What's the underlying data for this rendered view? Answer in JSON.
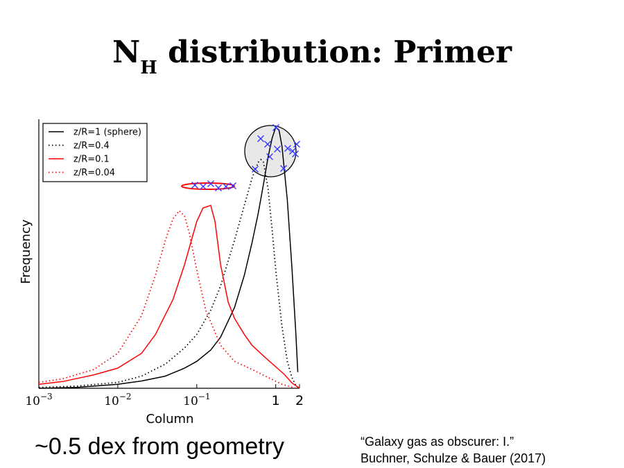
{
  "slide": {
    "title_main": "N",
    "title_sub": "H",
    "title_rest": " distribution: Primer",
    "caption": "~0.5 dex from geometry",
    "citation_line1": "“Galaxy gas as obscurer: I.”",
    "citation_line2": "Buchner, Schulze & Bauer (2017)"
  },
  "chart_data": {
    "type": "line",
    "xlabel": "Column",
    "ylabel": "Frequency",
    "x_scale": "log",
    "xlim": [
      0.001,
      2
    ],
    "ylim": [
      0,
      1.0
    ],
    "x_ticks": [
      {
        "value": 0.001,
        "base": "10",
        "exp": "−3"
      },
      {
        "value": 0.01,
        "base": "10",
        "exp": "−2"
      },
      {
        "value": 0.1,
        "base": "10",
        "exp": "−1"
      },
      {
        "value": 1,
        "label": "1"
      },
      {
        "value": 2,
        "label": "2"
      }
    ],
    "legend_position": "top-left",
    "colors": {
      "black": "#000000",
      "red": "#ff0000",
      "marker": "#3333ff",
      "sphere_fill": "#e8e8e8"
    },
    "series": [
      {
        "name": "z/R=1 (sphere)",
        "color": "#000000",
        "style": "solid",
        "x": [
          0.001,
          0.003,
          0.01,
          0.02,
          0.04,
          0.07,
          0.1,
          0.15,
          0.2,
          0.3,
          0.4,
          0.5,
          0.6,
          0.7,
          0.8,
          0.9,
          1.0,
          1.1,
          1.2,
          1.4,
          1.6,
          1.8,
          1.9
        ],
        "values": [
          0.0,
          0.003,
          0.015,
          0.027,
          0.045,
          0.075,
          0.1,
          0.142,
          0.19,
          0.3,
          0.42,
          0.54,
          0.65,
          0.76,
          0.86,
          0.93,
          0.97,
          0.96,
          0.9,
          0.7,
          0.45,
          0.2,
          0.06
        ]
      },
      {
        "name": "z/R=0.4",
        "color": "#000000",
        "style": "dotted",
        "x": [
          0.001,
          0.003,
          0.01,
          0.02,
          0.04,
          0.07,
          0.1,
          0.15,
          0.2,
          0.3,
          0.4,
          0.5,
          0.6,
          0.65,
          0.7,
          0.8,
          0.9,
          1.0,
          1.2,
          1.4,
          1.6,
          1.8,
          1.95
        ],
        "values": [
          0.003,
          0.008,
          0.022,
          0.045,
          0.09,
          0.15,
          0.2,
          0.29,
          0.38,
          0.55,
          0.68,
          0.78,
          0.84,
          0.85,
          0.84,
          0.74,
          0.59,
          0.44,
          0.23,
          0.1,
          0.04,
          0.01,
          0.002
        ]
      },
      {
        "name": "z/R=0.1",
        "color": "#ff0000",
        "style": "solid",
        "x": [
          0.001,
          0.002,
          0.005,
          0.01,
          0.02,
          0.03,
          0.05,
          0.07,
          0.1,
          0.12,
          0.15,
          0.17,
          0.2,
          0.25,
          0.3,
          0.4,
          0.5,
          0.7,
          1.0,
          1.3,
          1.6,
          2.0
        ],
        "values": [
          0.015,
          0.025,
          0.05,
          0.075,
          0.13,
          0.2,
          0.33,
          0.46,
          0.62,
          0.67,
          0.68,
          0.62,
          0.46,
          0.32,
          0.26,
          0.2,
          0.16,
          0.12,
          0.08,
          0.05,
          0.02,
          0.0
        ]
      },
      {
        "name": "z/R=0.04",
        "color": "#ff0000",
        "style": "dotted",
        "x": [
          0.001,
          0.002,
          0.005,
          0.01,
          0.02,
          0.03,
          0.04,
          0.05,
          0.06,
          0.07,
          0.08,
          0.1,
          0.13,
          0.2,
          0.3,
          0.5,
          0.8,
          1.2,
          1.8
        ],
        "values": [
          0.022,
          0.035,
          0.07,
          0.13,
          0.27,
          0.42,
          0.55,
          0.63,
          0.66,
          0.64,
          0.58,
          0.44,
          0.29,
          0.16,
          0.1,
          0.07,
          0.04,
          0.015,
          0.0
        ]
      }
    ]
  }
}
